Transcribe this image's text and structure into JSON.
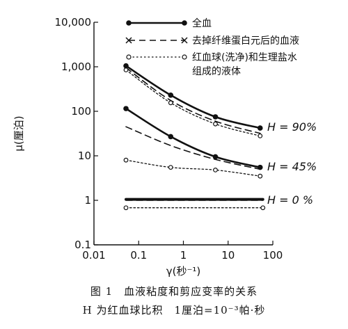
{
  "chart_data": {
    "type": "line",
    "x_scale": "log",
    "y_scale": "log",
    "xlim": [
      0.01,
      100
    ],
    "ylim": [
      0.1,
      10000
    ],
    "x_ticks": [
      {
        "value": 0.01,
        "label": "0.01"
      },
      {
        "value": 0.1,
        "label": "0.1"
      },
      {
        "value": 1,
        "label": "1"
      },
      {
        "value": 10,
        "label": "10"
      },
      {
        "value": 100,
        "label": "100"
      }
    ],
    "y_ticks": [
      {
        "value": 0.1,
        "label": "0.1"
      },
      {
        "value": 1,
        "label": "1"
      },
      {
        "value": 10,
        "label": "10"
      },
      {
        "value": 100,
        "label": "100"
      },
      {
        "value": 1000,
        "label": "1,000"
      },
      {
        "value": 10000,
        "label": "10,000"
      }
    ],
    "xlabel": "γ(秒⁻¹)",
    "ylabel": "μ(厘泊)",
    "grid": false,
    "legend_position": "top-right",
    "legend": [
      {
        "name": "全血",
        "style": "solid-filled"
      },
      {
        "name": "去掉纤维蛋白元后的血液",
        "style": "dashed-x"
      },
      {
        "name": "红血球(洗净)和生理盐水组成的液体",
        "style": "dotted-open"
      }
    ],
    "groups": [
      {
        "label": "H = 90%",
        "series": [
          {
            "style": "solid-filled",
            "x": [
              0.052,
              0.52,
              5.2,
              52
            ],
            "y": [
              1050,
              230,
              75,
              42
            ]
          },
          {
            "style": "dashed-x",
            "x": [
              0.052,
              0.52,
              5.2,
              52
            ],
            "y": [
              950,
              175,
              60,
              32
            ]
          },
          {
            "style": "dotted-open",
            "x": [
              0.052,
              0.52,
              5.2,
              52
            ],
            "y": [
              850,
              155,
              52,
              28
            ]
          }
        ]
      },
      {
        "label": "H = 45%",
        "series": [
          {
            "style": "solid-filled",
            "x": [
              0.052,
              0.52,
              5.2,
              52
            ],
            "y": [
              115,
              27,
              9.5,
              5.5
            ]
          },
          {
            "style": "dashed-x",
            "x": [
              0.052,
              0.52,
              5.2,
              52
            ],
            "y": [
              45,
              17,
              8.3,
              5
            ]
          },
          {
            "style": "dotted-open",
            "x": [
              0.052,
              0.52,
              5.2,
              52
            ],
            "y": [
              8,
              5.5,
              4.8,
              3.5
            ]
          }
        ]
      },
      {
        "label": "H = 0 %",
        "series": [
          {
            "style": "solid-thick",
            "x": [
              0.052,
              60
            ],
            "y": [
              1.05,
              1.05
            ]
          },
          {
            "style": "dashed-x",
            "x": [
              0.052,
              60
            ],
            "y": [
              1.0,
              1.0
            ]
          },
          {
            "style": "dotted-open",
            "x": [
              0.052,
              60
            ],
            "y": [
              0.68,
              0.68
            ]
          }
        ]
      }
    ]
  },
  "caption": {
    "line1": "图 1　血液粘度和剪应变率的关系",
    "line2": "H 为红血球比积　1厘泊=10⁻³帕·秒"
  }
}
